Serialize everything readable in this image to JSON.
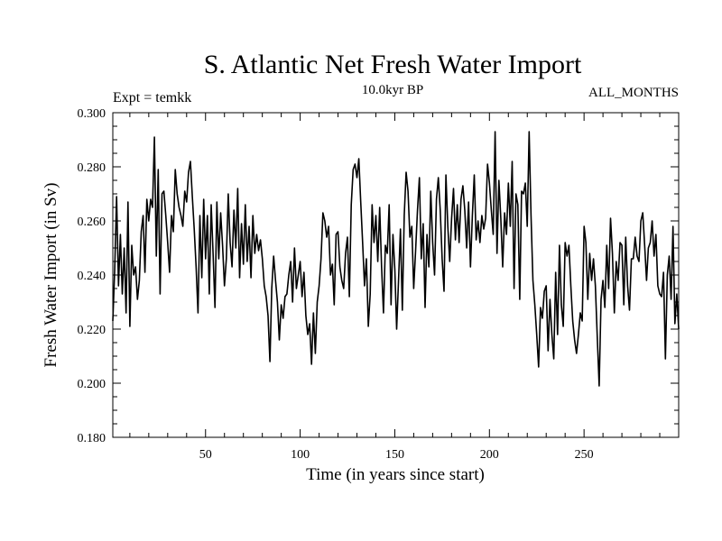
{
  "chart_data": {
    "type": "line",
    "title": "S. Atlantic Net Fresh Water Import",
    "subtitle_left": "Expt = temkk",
    "subtitle_center": "10.0kyr BP",
    "subtitle_right": "ALL_MONTHS",
    "xlabel": "Time (in years since start)",
    "ylabel": "Fresh Water Import (in Sv)",
    "xlim": [
      1,
      300
    ],
    "ylim": [
      0.18,
      0.3
    ],
    "xticks": [
      50,
      100,
      150,
      200,
      250
    ],
    "yticks": [
      "0.180",
      "0.200",
      "0.220",
      "0.240",
      "0.260",
      "0.280",
      "0.300"
    ],
    "series": [
      {
        "name": "fresh_water_import",
        "x_start": 1,
        "x_step": 1,
        "values": [
          0.223,
          0.242,
          0.269,
          0.236,
          0.255,
          0.233,
          0.25,
          0.226,
          0.267,
          0.221,
          0.251,
          0.24,
          0.243,
          0.231,
          0.238,
          0.256,
          0.262,
          0.241,
          0.268,
          0.26,
          0.268,
          0.265,
          0.291,
          0.247,
          0.279,
          0.233,
          0.27,
          0.271,
          0.262,
          0.252,
          0.241,
          0.262,
          0.256,
          0.279,
          0.27,
          0.265,
          0.262,
          0.258,
          0.271,
          0.267,
          0.278,
          0.282,
          0.269,
          0.257,
          0.243,
          0.226,
          0.262,
          0.239,
          0.268,
          0.246,
          0.262,
          0.233,
          0.266,
          0.248,
          0.228,
          0.267,
          0.246,
          0.263,
          0.251,
          0.236,
          0.246,
          0.27,
          0.252,
          0.243,
          0.264,
          0.25,
          0.272,
          0.239,
          0.259,
          0.244,
          0.266,
          0.245,
          0.258,
          0.239,
          0.262,
          0.248,
          0.255,
          0.249,
          0.253,
          0.246,
          0.236,
          0.232,
          0.225,
          0.208,
          0.235,
          0.247,
          0.238,
          0.23,
          0.216,
          0.229,
          0.224,
          0.232,
          0.233,
          0.24,
          0.245,
          0.23,
          0.25,
          0.235,
          0.24,
          0.245,
          0.232,
          0.241,
          0.225,
          0.218,
          0.222,
          0.207,
          0.226,
          0.211,
          0.23,
          0.236,
          0.246,
          0.263,
          0.26,
          0.254,
          0.258,
          0.24,
          0.244,
          0.229,
          0.255,
          0.256,
          0.243,
          0.238,
          0.235,
          0.248,
          0.254,
          0.232,
          0.266,
          0.279,
          0.281,
          0.276,
          0.283,
          0.267,
          0.252,
          0.236,
          0.246,
          0.221,
          0.233,
          0.266,
          0.252,
          0.262,
          0.245,
          0.265,
          0.243,
          0.226,
          0.251,
          0.248,
          0.266,
          0.229,
          0.255,
          0.242,
          0.22,
          0.238,
          0.257,
          0.227,
          0.262,
          0.278,
          0.271,
          0.254,
          0.258,
          0.235,
          0.249,
          0.264,
          0.276,
          0.246,
          0.259,
          0.228,
          0.255,
          0.243,
          0.271,
          0.252,
          0.24,
          0.268,
          0.276,
          0.264,
          0.246,
          0.234,
          0.277,
          0.258,
          0.245,
          0.261,
          0.272,
          0.253,
          0.266,
          0.252,
          0.268,
          0.273,
          0.264,
          0.25,
          0.267,
          0.243,
          0.262,
          0.277,
          0.253,
          0.26,
          0.252,
          0.262,
          0.257,
          0.261,
          0.281,
          0.274,
          0.264,
          0.255,
          0.293,
          0.248,
          0.275,
          0.261,
          0.243,
          0.263,
          0.255,
          0.274,
          0.258,
          0.282,
          0.235,
          0.27,
          0.266,
          0.231,
          0.271,
          0.27,
          0.274,
          0.258,
          0.293,
          0.262,
          0.238,
          0.229,
          0.218,
          0.206,
          0.228,
          0.224,
          0.234,
          0.236,
          0.212,
          0.231,
          0.218,
          0.209,
          0.241,
          0.218,
          0.251,
          0.229,
          0.221,
          0.252,
          0.247,
          0.251,
          0.236,
          0.223,
          0.216,
          0.211,
          0.218,
          0.226,
          0.223,
          0.258,
          0.252,
          0.231,
          0.248,
          0.238,
          0.246,
          0.236,
          0.217,
          0.199,
          0.231,
          0.238,
          0.228,
          0.251,
          0.235,
          0.261,
          0.248,
          0.226,
          0.245,
          0.238,
          0.252,
          0.251,
          0.229,
          0.254,
          0.236,
          0.227,
          0.246,
          0.246,
          0.254,
          0.247,
          0.245,
          0.26,
          0.263,
          0.251,
          0.238,
          0.25,
          0.252,
          0.26,
          0.247,
          0.255,
          0.236,
          0.233,
          0.232,
          0.241,
          0.209,
          0.24,
          0.247,
          0.231,
          0.258,
          0.222,
          0.233,
          0.22
        ]
      }
    ]
  }
}
